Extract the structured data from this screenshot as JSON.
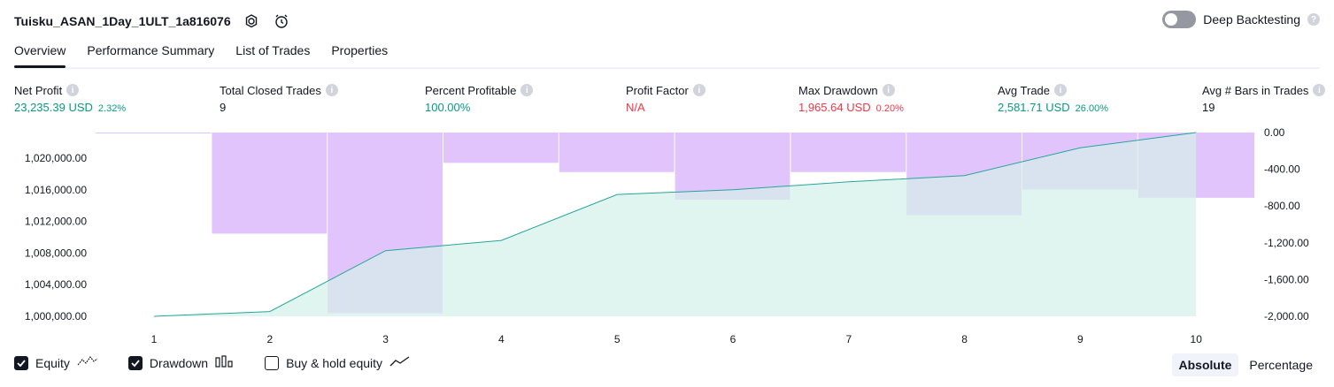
{
  "header": {
    "title": "Tuisku_ASAN_1Day_1ULT_1a816076",
    "deep_backtesting_label": "Deep Backtesting",
    "help_text": "?"
  },
  "tabs": [
    {
      "label": "Overview",
      "active": true
    },
    {
      "label": "Performance Summary",
      "active": false
    },
    {
      "label": "List of Trades",
      "active": false
    },
    {
      "label": "Properties",
      "active": false
    }
  ],
  "metrics": {
    "net_profit": {
      "label": "Net Profit",
      "value": "23,235.39 USD",
      "sub": "2.32%"
    },
    "total_closed_trades": {
      "label": "Total Closed Trades",
      "value": "9"
    },
    "percent_profitable": {
      "label": "Percent Profitable",
      "value": "100.00%"
    },
    "profit_factor": {
      "label": "Profit Factor",
      "value": "N/A"
    },
    "max_drawdown": {
      "label": "Max Drawdown",
      "value": "1,965.64 USD",
      "sub": "0.20%"
    },
    "avg_trade": {
      "label": "Avg Trade",
      "value": "2,581.71 USD",
      "sub": "26.00%"
    },
    "avg_bars": {
      "label": "Avg # Bars in Trades",
      "value": "19"
    },
    "info_glyph": "i"
  },
  "chart_data": {
    "type": "line",
    "x": [
      1,
      2,
      3,
      4,
      5,
      6,
      7,
      8,
      9,
      10
    ],
    "series": [
      {
        "values": [
          1000000,
          1000600,
          1008300,
          1009600,
          1015400,
          1016000,
          1017000,
          1017800,
          1021300,
          1023235
        ]
      },
      {
        "values": [
          0,
          1100,
          1965.64,
          330,
          430,
          730,
          430,
          900,
          620,
          710
        ]
      }
    ],
    "left_ticks": [
      "1,000,000.00",
      "1,004,000.00",
      "1,008,000.00",
      "1,012,000.00",
      "1,016,000.00",
      "1,020,000.00"
    ],
    "right_ticks": [
      "0.00",
      "-400.00",
      "-800.00",
      "-1,200.00",
      "-1,600.00",
      "-2,000.00"
    ],
    "x_ticks": [
      "1",
      "2",
      "3",
      "4",
      "5",
      "6",
      "7",
      "8",
      "9",
      "10"
    ],
    "ylim_left": [
      1000000,
      1023235
    ],
    "ylim_right": [
      -2000,
      0
    ],
    "colors": {
      "equity_line": "#26a69a",
      "equity_fill": "#d4f1ea",
      "drawdown": "#e1c4fb"
    }
  },
  "legend": {
    "equity": {
      "label": "Equity",
      "checked": true
    },
    "drawdown": {
      "label": "Drawdown",
      "checked": true
    },
    "buy_hold": {
      "label": "Buy & hold equity",
      "checked": false
    }
  },
  "mode": {
    "absolute": "Absolute",
    "percentage": "Percentage"
  }
}
